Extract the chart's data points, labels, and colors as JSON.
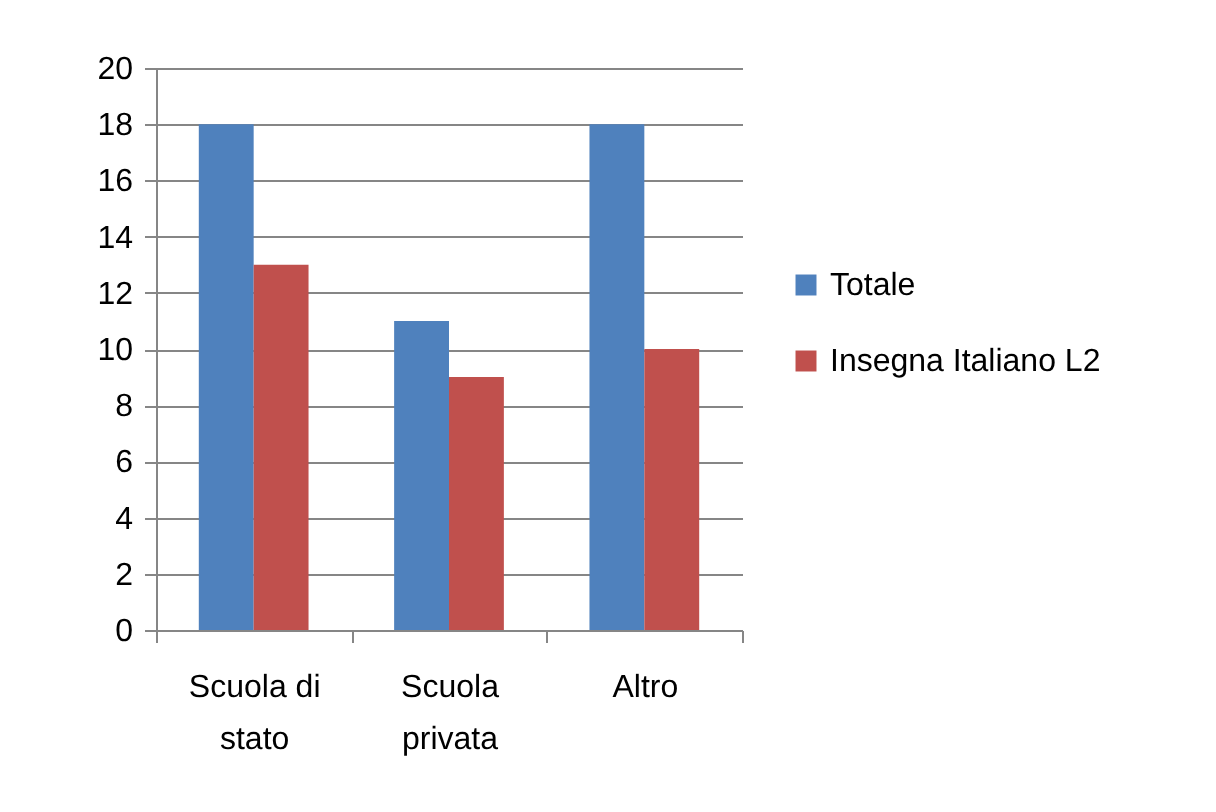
{
  "chart_data": {
    "type": "bar",
    "categories": [
      "Scuola di stato",
      "Scuola privata",
      "Altro"
    ],
    "series": [
      {
        "name": "Totale",
        "color": "#4f81bd",
        "values": [
          18,
          11,
          18
        ]
      },
      {
        "name": "Insegna Italiano L2",
        "color": "#c0504d",
        "values": [
          13,
          9,
          10
        ]
      }
    ],
    "ylim": [
      0,
      20
    ],
    "yticks": [
      0,
      2,
      4,
      6,
      8,
      10,
      12,
      14,
      16,
      18,
      20
    ],
    "grid": "y",
    "legend": "right"
  }
}
